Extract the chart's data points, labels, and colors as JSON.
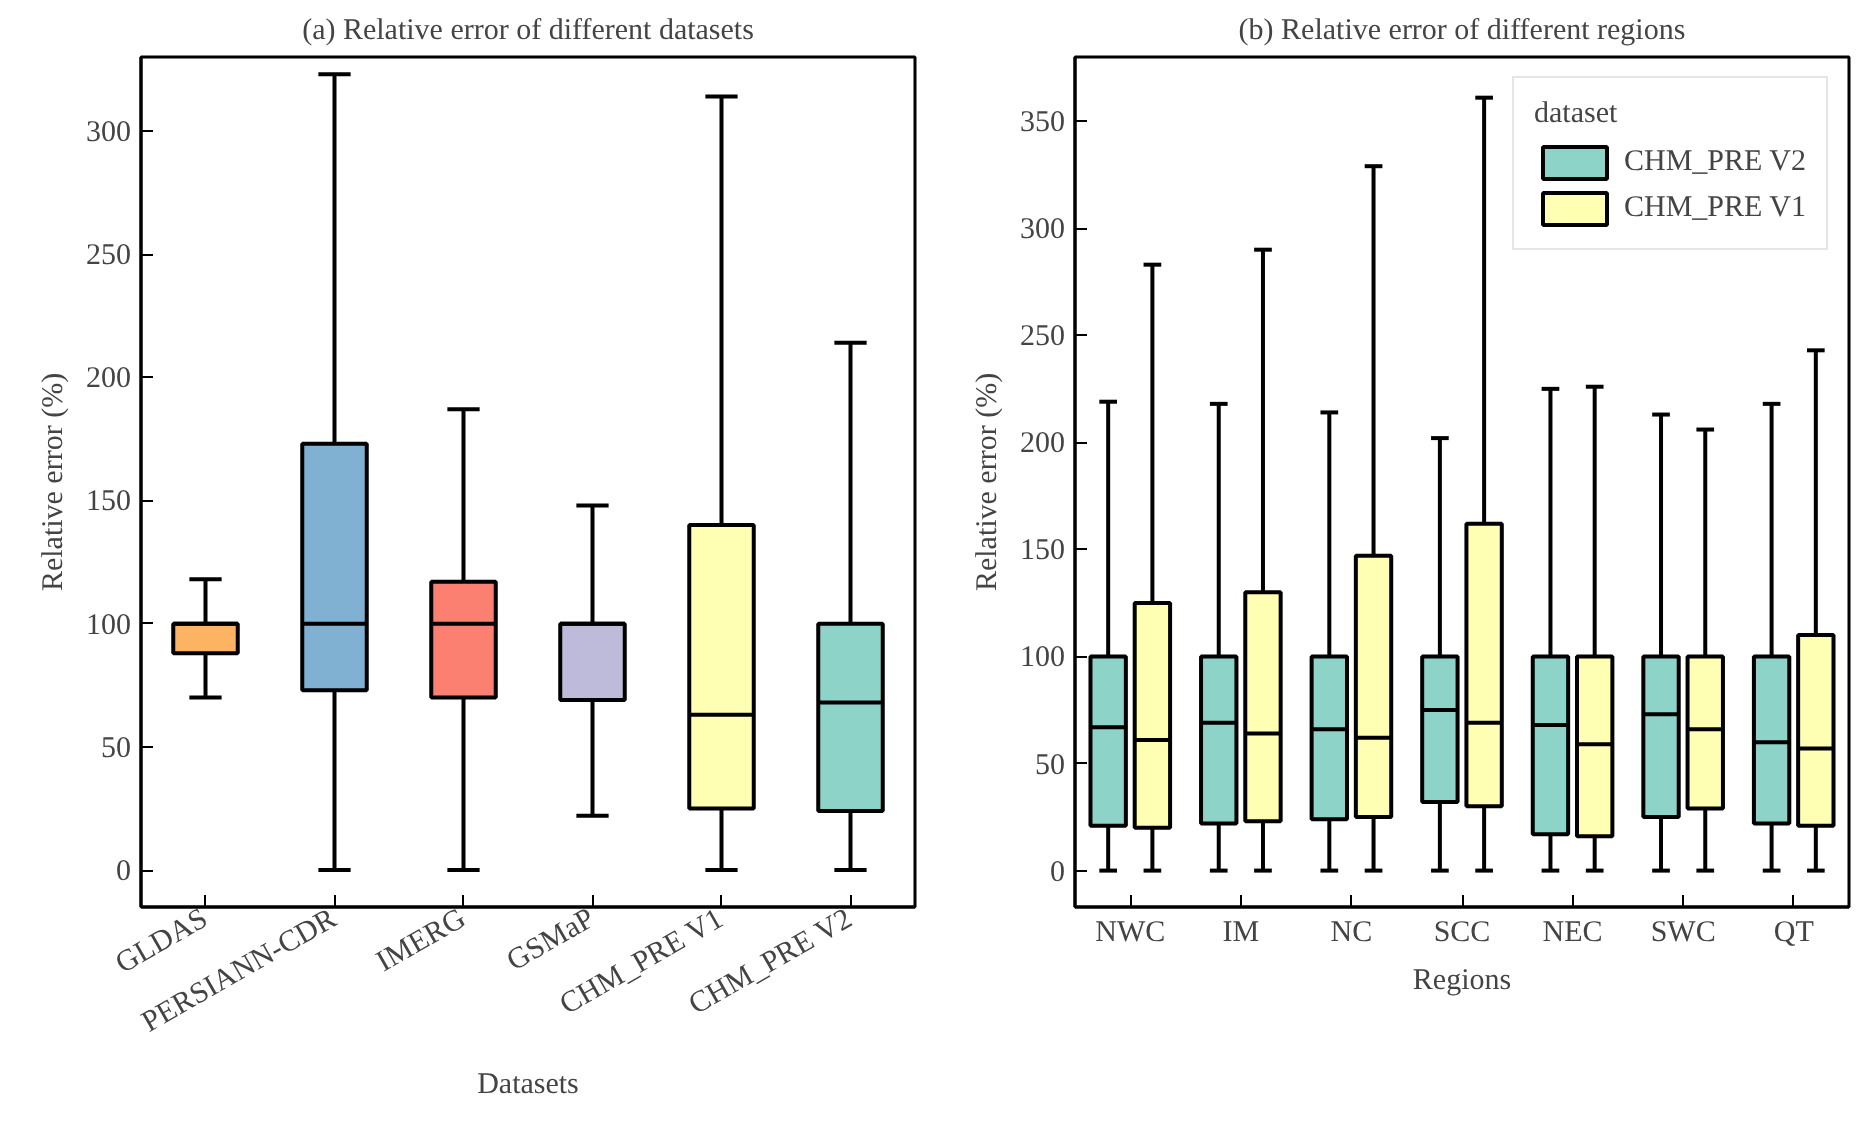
{
  "chart_data": [
    {
      "type": "box",
      "title": "(a) Relative error of different datasets",
      "xlabel": "Datasets",
      "ylabel": "Relative error (%)",
      "categories": [
        "GLDAS",
        "PERSIANN-CDR",
        "IMERG",
        "GSMaP",
        "CHM_PRE V1",
        "CHM_PRE V2"
      ],
      "colors": [
        "#fdb462",
        "#80b1d3",
        "#fb8072",
        "#bebada",
        "#ffffb3",
        "#8dd3c7"
      ],
      "boxes": [
        {
          "low": 70,
          "q1": 88,
          "median": 100,
          "q3": 100,
          "high": 118
        },
        {
          "low": 0,
          "q1": 73,
          "median": 100,
          "q3": 173,
          "high": 323
        },
        {
          "low": 0,
          "q1": 70,
          "median": 100,
          "q3": 117,
          "high": 187
        },
        {
          "low": 22,
          "q1": 69,
          "median": 100,
          "q3": 100,
          "high": 148
        },
        {
          "low": 0,
          "q1": 25,
          "median": 63,
          "q3": 140,
          "high": 314
        },
        {
          "low": 0,
          "q1": 24,
          "median": 68,
          "q3": 100,
          "high": 214
        }
      ],
      "ylim": [
        -15,
        330
      ],
      "yticks": [
        0,
        50,
        100,
        150,
        200,
        250,
        300
      ],
      "grid": false
    },
    {
      "type": "box",
      "title": "(b) Relative error of different regions",
      "xlabel": "Regions",
      "ylabel": "Relative error (%)",
      "categories": [
        "NWC",
        "IM",
        "NC",
        "SCC",
        "NEC",
        "SWC",
        "QT"
      ],
      "legend_title": "dataset",
      "legend": "top right",
      "series": [
        {
          "name": "CHM_PRE V2",
          "color": "#8dd3c7",
          "boxes": [
            {
              "low": 0,
              "q1": 21,
              "median": 67,
              "q3": 100,
              "high": 219
            },
            {
              "low": 0,
              "q1": 22,
              "median": 69,
              "q3": 100,
              "high": 218
            },
            {
              "low": 0,
              "q1": 24,
              "median": 66,
              "q3": 100,
              "high": 214
            },
            {
              "low": 0,
              "q1": 32,
              "median": 75,
              "q3": 100,
              "high": 202
            },
            {
              "low": 0,
              "q1": 17,
              "median": 68,
              "q3": 100,
              "high": 225
            },
            {
              "low": 0,
              "q1": 25,
              "median": 73,
              "q3": 100,
              "high": 213
            },
            {
              "low": 0,
              "q1": 22,
              "median": 60,
              "q3": 100,
              "high": 218
            }
          ]
        },
        {
          "name": "CHM_PRE V1",
          "color": "#ffffb3",
          "boxes": [
            {
              "low": 0,
              "q1": 20,
              "median": 61,
              "q3": 125,
              "high": 283
            },
            {
              "low": 0,
              "q1": 23,
              "median": 64,
              "q3": 130,
              "high": 290
            },
            {
              "low": 0,
              "q1": 25,
              "median": 62,
              "q3": 147,
              "high": 329
            },
            {
              "low": 0,
              "q1": 30,
              "median": 69,
              "q3": 162,
              "high": 361
            },
            {
              "low": 0,
              "q1": 16,
              "median": 59,
              "q3": 100,
              "high": 226
            },
            {
              "low": 0,
              "q1": 29,
              "median": 66,
              "q3": 100,
              "high": 206
            },
            {
              "low": 0,
              "q1": 21,
              "median": 57,
              "q3": 110,
              "high": 243
            }
          ]
        }
      ],
      "ylim": [
        -17,
        380
      ],
      "yticks": [
        0,
        50,
        100,
        150,
        200,
        250,
        300,
        350
      ],
      "grid": false
    }
  ]
}
